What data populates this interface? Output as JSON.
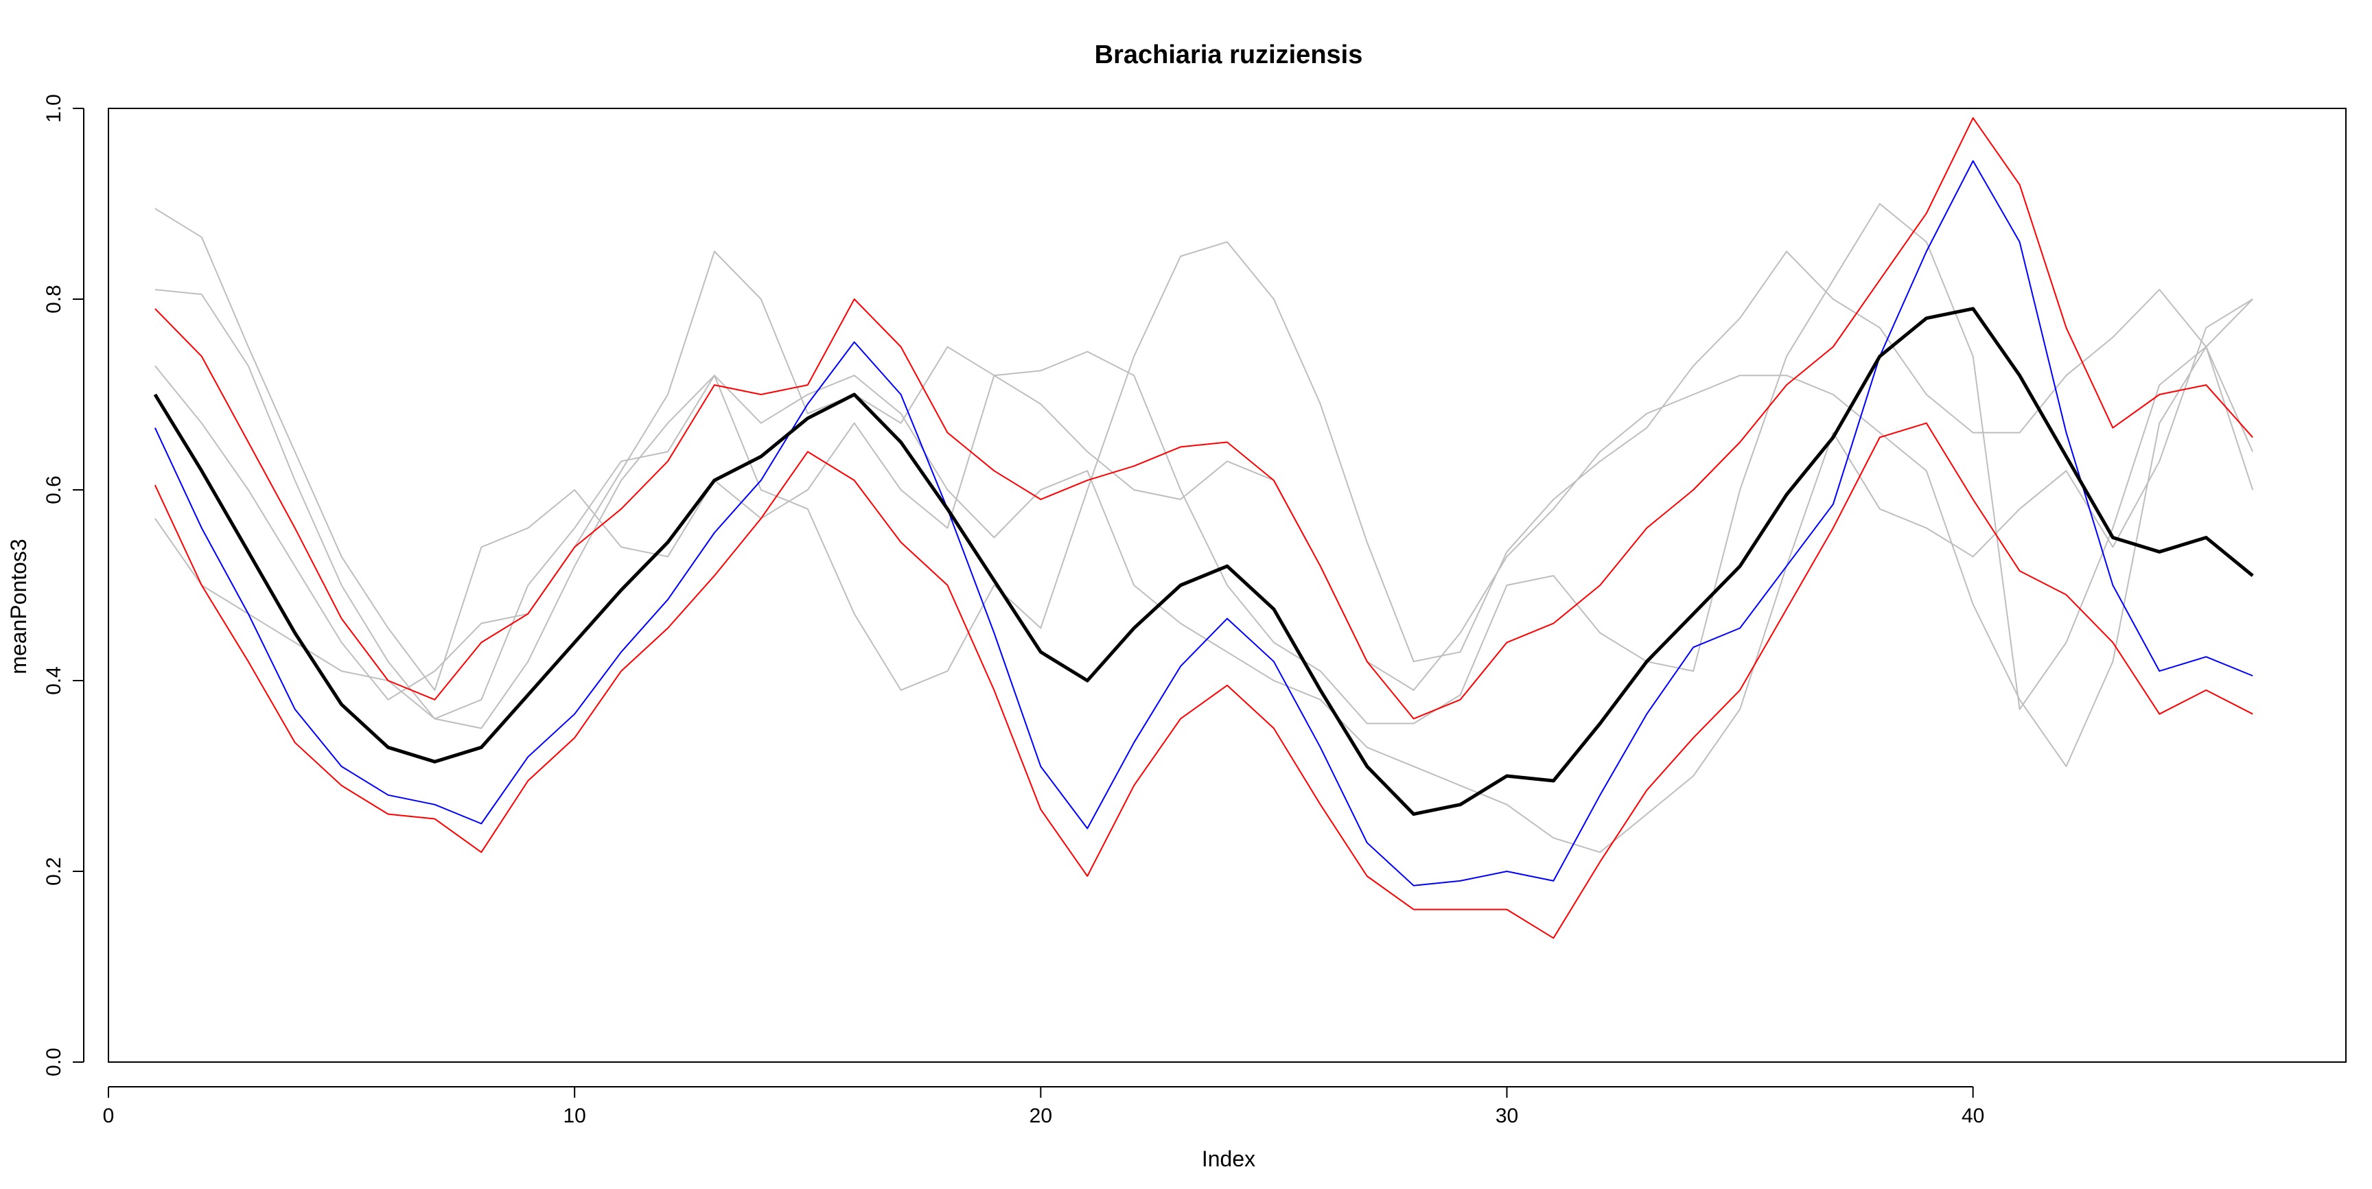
{
  "chart_data": {
    "type": "line",
    "title": "Brachiaria ruziziensis",
    "xlabel": "Index",
    "ylabel": "meanPontos3",
    "xlim": [
      0,
      48
    ],
    "ylim": [
      0.0,
      1.0
    ],
    "x_ticks": [
      0,
      10,
      20,
      30,
      40
    ],
    "x_tick_labels": [
      "0",
      "10",
      "20",
      "30",
      "40"
    ],
    "y_ticks": [
      0.0,
      0.2,
      0.4,
      0.6,
      0.8,
      1.0
    ],
    "y_tick_labels": [
      "0.0",
      "0.2",
      "0.4",
      "0.6",
      "0.8",
      "1.0"
    ],
    "grid": false,
    "legend": "none",
    "x": [
      1,
      2,
      3,
      4,
      5,
      6,
      7,
      8,
      9,
      10,
      11,
      12,
      13,
      14,
      15,
      16,
      17,
      18,
      19,
      20,
      21,
      22,
      23,
      24,
      25,
      26,
      27,
      28,
      29,
      30,
      31,
      32,
      33,
      34,
      35,
      36,
      37,
      38,
      39,
      40,
      41,
      42,
      43,
      44,
      45,
      46
    ],
    "colors": {
      "gray": "#bebebe",
      "red": "#ff0000",
      "blue": "#0000ff",
      "black": "#000000",
      "frame": "#000000"
    },
    "series": [
      {
        "color": "#bebebe",
        "width": 1,
        "values": [
          0.895,
          0.865,
          0.75,
          0.64,
          0.53,
          0.455,
          0.39,
          0.54,
          0.56,
          0.6,
          0.54,
          0.53,
          0.61,
          0.57,
          0.6,
          0.67,
          0.6,
          0.56,
          0.72,
          0.725,
          0.745,
          0.72,
          0.6,
          0.5,
          0.44,
          0.41,
          0.355,
          0.355,
          0.385,
          0.5,
          0.51,
          0.45,
          0.42,
          0.41,
          0.6,
          0.74,
          0.82,
          0.9,
          0.86,
          0.74,
          0.37,
          0.44,
          0.56,
          0.71,
          0.75,
          0.64
        ]
      },
      {
        "color": "#bebebe",
        "width": 1,
        "values": [
          0.81,
          0.805,
          0.73,
          0.61,
          0.5,
          0.42,
          0.36,
          0.38,
          0.5,
          0.56,
          0.63,
          0.64,
          0.72,
          0.6,
          0.58,
          0.47,
          0.39,
          0.41,
          0.5,
          0.455,
          0.6,
          0.74,
          0.845,
          0.86,
          0.8,
          0.69,
          0.545,
          0.42,
          0.43,
          0.535,
          0.59,
          0.63,
          0.665,
          0.73,
          0.78,
          0.85,
          0.8,
          0.77,
          0.7,
          0.66,
          0.66,
          0.72,
          0.76,
          0.81,
          0.75,
          0.8
        ]
      },
      {
        "color": "#bebebe",
        "width": 1,
        "values": [
          0.73,
          0.67,
          0.6,
          0.52,
          0.44,
          0.38,
          0.41,
          0.46,
          0.47,
          0.54,
          0.62,
          0.7,
          0.85,
          0.8,
          0.68,
          0.7,
          0.67,
          0.75,
          0.72,
          0.69,
          0.64,
          0.6,
          0.59,
          0.63,
          0.61,
          0.52,
          0.42,
          0.39,
          0.45,
          0.53,
          0.58,
          0.64,
          0.68,
          0.7,
          0.72,
          0.72,
          0.7,
          0.66,
          0.62,
          0.48,
          0.38,
          0.31,
          0.42,
          0.67,
          0.75,
          0.6
        ]
      },
      {
        "color": "#bebebe",
        "width": 1,
        "values": [
          0.57,
          0.5,
          0.47,
          0.44,
          0.41,
          0.4,
          0.36,
          0.35,
          0.42,
          0.52,
          0.61,
          0.67,
          0.72,
          0.67,
          0.7,
          0.72,
          0.68,
          0.6,
          0.55,
          0.6,
          0.62,
          0.5,
          0.46,
          0.43,
          0.4,
          0.38,
          0.33,
          0.31,
          0.29,
          0.27,
          0.235,
          0.22,
          0.26,
          0.3,
          0.37,
          0.52,
          0.66,
          0.58,
          0.56,
          0.53,
          0.58,
          0.62,
          0.54,
          0.63,
          0.77,
          0.8
        ]
      },
      {
        "color": "#ff0000",
        "width": 1,
        "values": [
          0.79,
          0.74,
          0.65,
          0.56,
          0.465,
          0.4,
          0.38,
          0.44,
          0.47,
          0.54,
          0.58,
          0.63,
          0.71,
          0.7,
          0.71,
          0.8,
          0.75,
          0.66,
          0.62,
          0.59,
          0.61,
          0.625,
          0.645,
          0.65,
          0.61,
          0.52,
          0.42,
          0.36,
          0.38,
          0.44,
          0.46,
          0.5,
          0.56,
          0.6,
          0.65,
          0.71,
          0.75,
          0.82,
          0.89,
          0.99,
          0.92,
          0.77,
          0.665,
          0.7,
          0.71,
          0.655
        ]
      },
      {
        "color": "#ff0000",
        "width": 1,
        "values": [
          0.605,
          0.5,
          0.42,
          0.335,
          0.29,
          0.26,
          0.255,
          0.22,
          0.295,
          0.34,
          0.41,
          0.455,
          0.51,
          0.57,
          0.64,
          0.61,
          0.545,
          0.5,
          0.39,
          0.265,
          0.195,
          0.29,
          0.36,
          0.395,
          0.35,
          0.27,
          0.195,
          0.16,
          0.16,
          0.16,
          0.13,
          0.21,
          0.285,
          0.34,
          0.39,
          0.475,
          0.56,
          0.655,
          0.67,
          0.59,
          0.515,
          0.49,
          0.44,
          0.365,
          0.39,
          0.365
        ]
      },
      {
        "color": "#0000ff",
        "width": 1,
        "values": [
          0.665,
          0.56,
          0.47,
          0.37,
          0.31,
          0.28,
          0.27,
          0.25,
          0.32,
          0.365,
          0.43,
          0.485,
          0.555,
          0.61,
          0.69,
          0.755,
          0.7,
          0.58,
          0.45,
          0.31,
          0.245,
          0.335,
          0.415,
          0.465,
          0.42,
          0.33,
          0.23,
          0.185,
          0.19,
          0.2,
          0.19,
          0.28,
          0.365,
          0.435,
          0.455,
          0.52,
          0.585,
          0.74,
          0.85,
          0.945,
          0.86,
          0.66,
          0.5,
          0.41,
          0.425,
          0.405
        ]
      },
      {
        "color": "#000000",
        "width": 2.5,
        "values": [
          0.7,
          0.62,
          0.535,
          0.45,
          0.375,
          0.33,
          0.315,
          0.33,
          0.385,
          0.44,
          0.495,
          0.545,
          0.61,
          0.635,
          0.675,
          0.7,
          0.65,
          0.58,
          0.505,
          0.43,
          0.4,
          0.455,
          0.5,
          0.52,
          0.475,
          0.39,
          0.31,
          0.26,
          0.27,
          0.3,
          0.295,
          0.355,
          0.42,
          0.47,
          0.52,
          0.595,
          0.655,
          0.74,
          0.78,
          0.79,
          0.72,
          0.635,
          0.55,
          0.535,
          0.55,
          0.51
        ]
      }
    ]
  }
}
